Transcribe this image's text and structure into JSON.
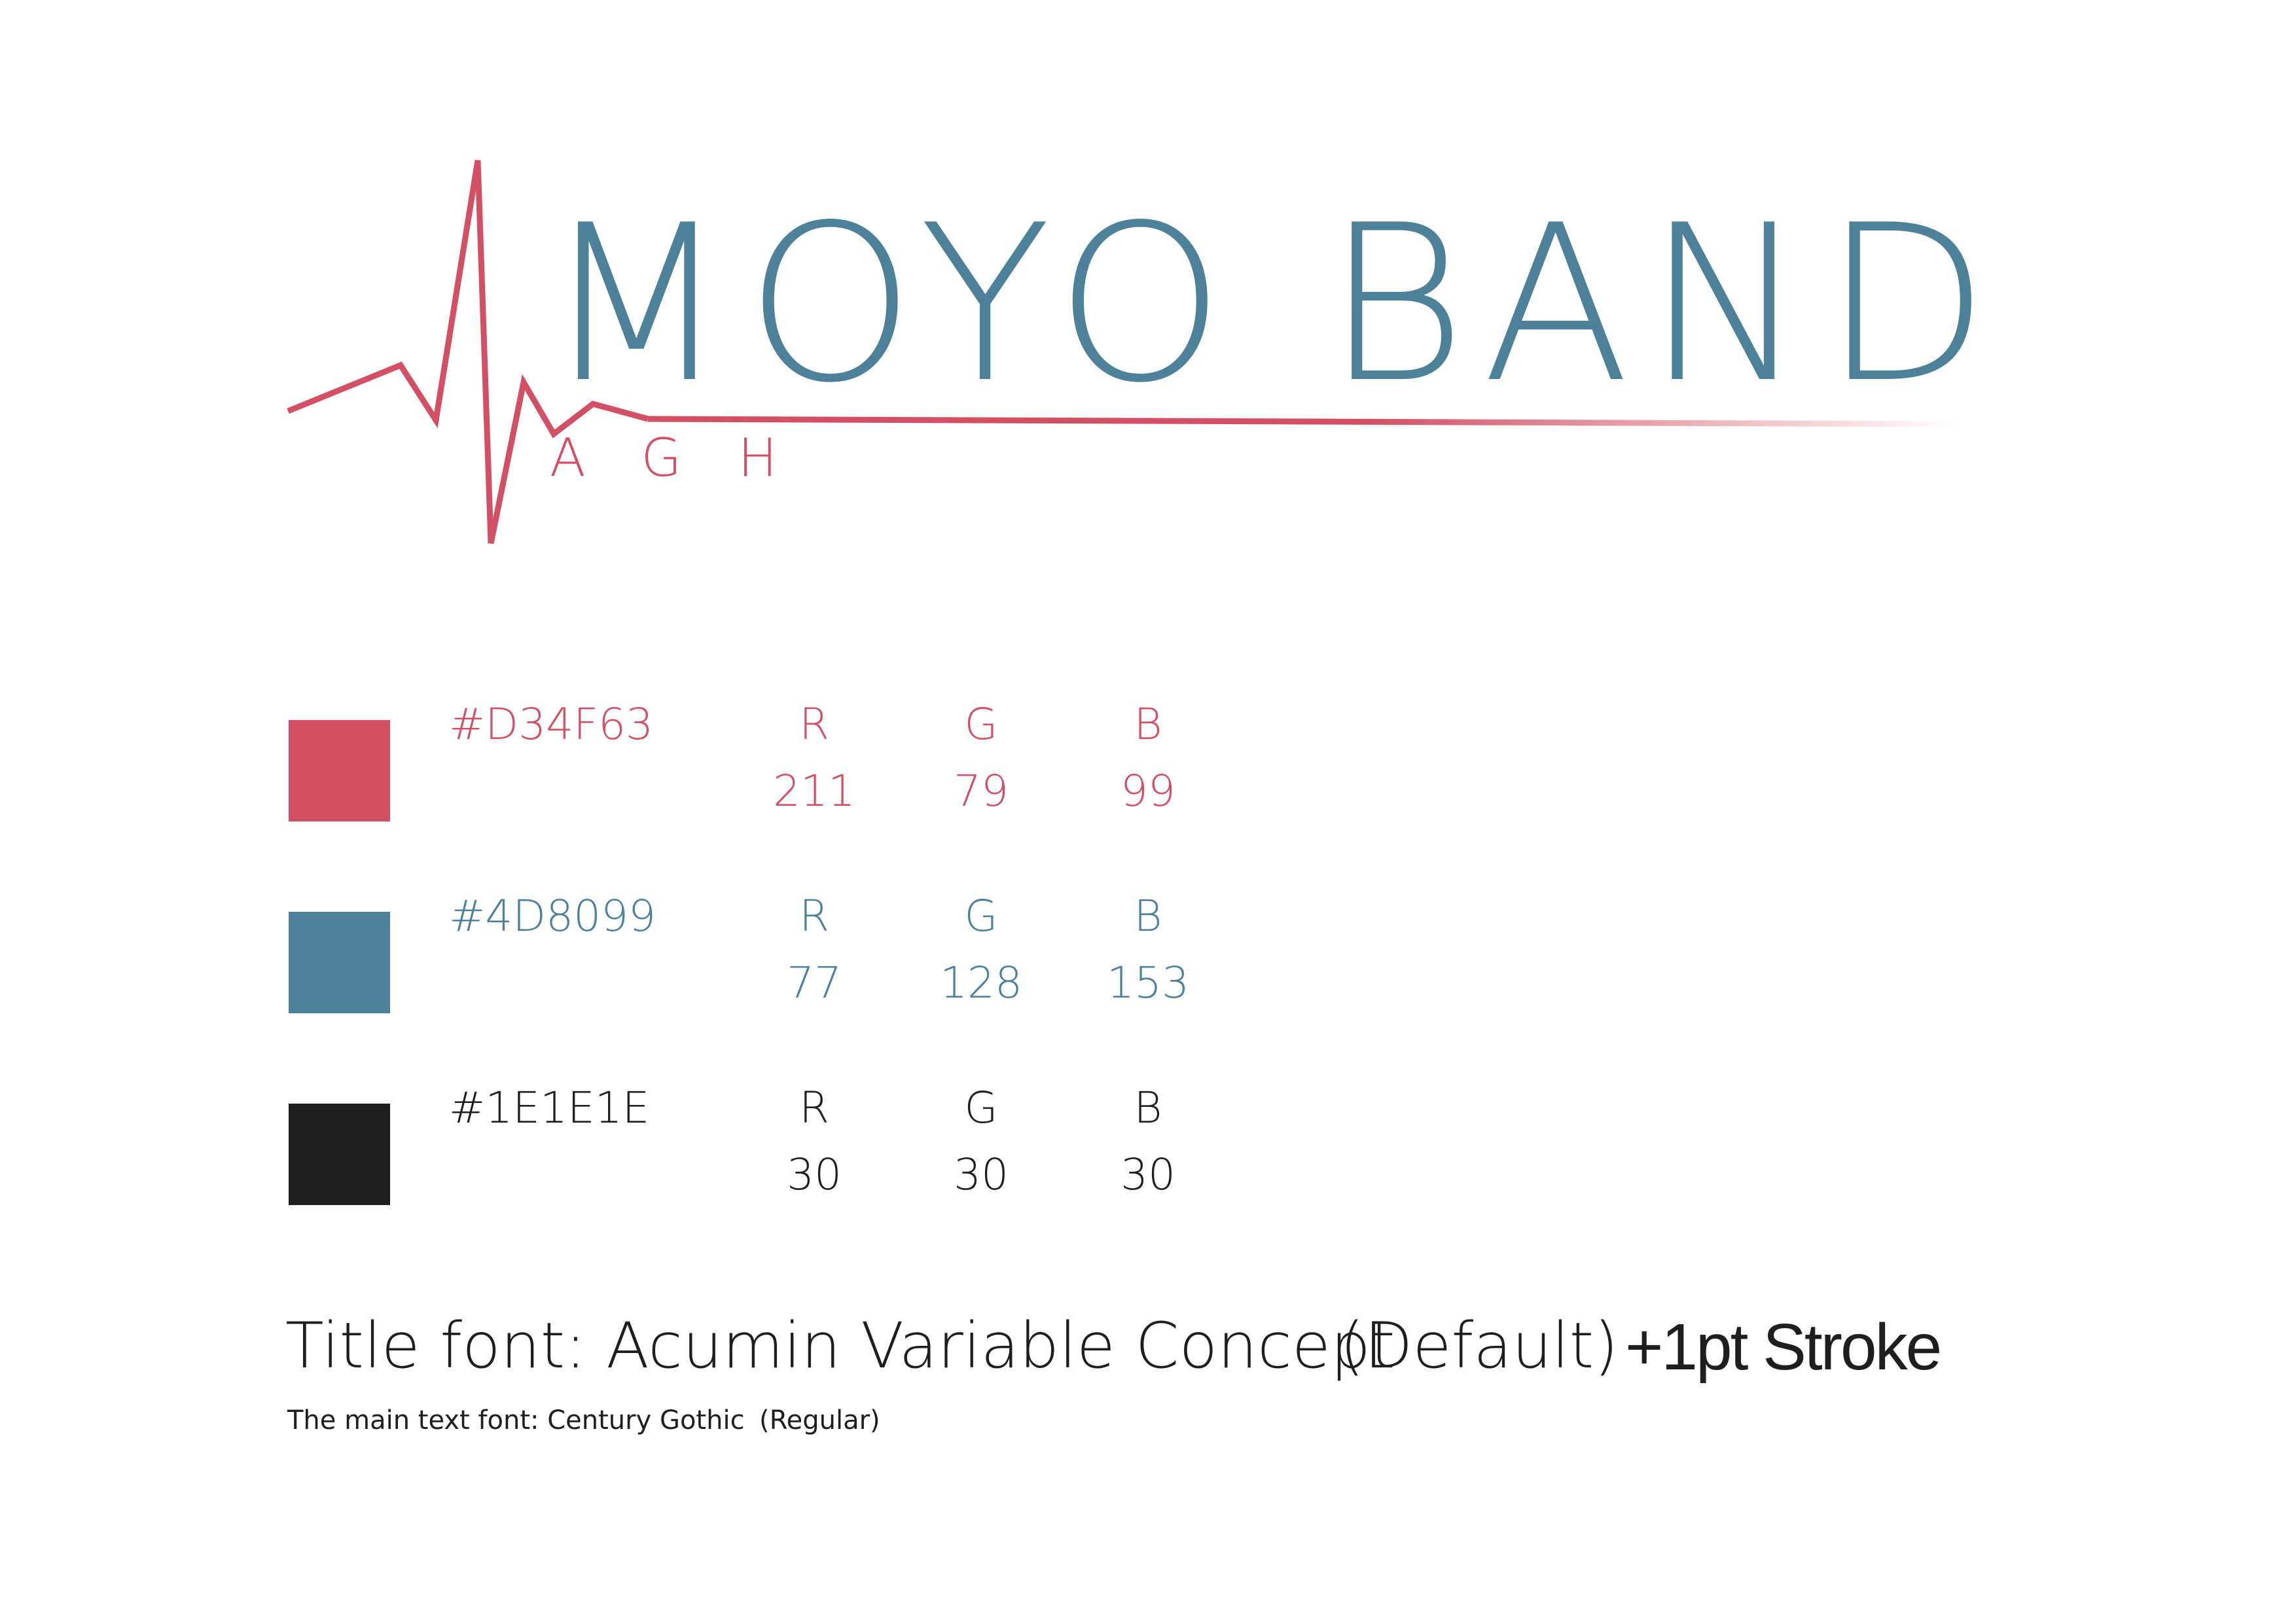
{
  "logo": {
    "title": "MOYO BAND",
    "subtitle": "AGH",
    "title_color": "#4D8099",
    "line_color": "#D34F63"
  },
  "palette": [
    {
      "swatch_color": "#D34F63",
      "text_color": "#D34F63",
      "hex": "#D34F63",
      "r_label": "R",
      "g_label": "G",
      "b_label": "B",
      "r": "211",
      "g": "79",
      "b": "99"
    },
    {
      "swatch_color": "#4D8099",
      "text_color": "#4D8099",
      "hex": "#4D8099",
      "r_label": "R",
      "g_label": "G",
      "b_label": "B",
      "r": "77",
      "g": "128",
      "b": "153"
    },
    {
      "swatch_color": "#1E1E1E",
      "text_color": "#1E1E1E",
      "hex": "#1E1E1E",
      "r_label": "R",
      "g_label": "G",
      "b_label": "B",
      "r": "30",
      "g": "30",
      "b": "30"
    }
  ],
  "fonts": {
    "title_label": "Title font: Acumin Variable Concept",
    "title_variant": "(Default)",
    "title_stroke": "+1pt  Stroke",
    "body_label": "The main text font: Century Gothic",
    "body_variant": "(Regular)"
  }
}
